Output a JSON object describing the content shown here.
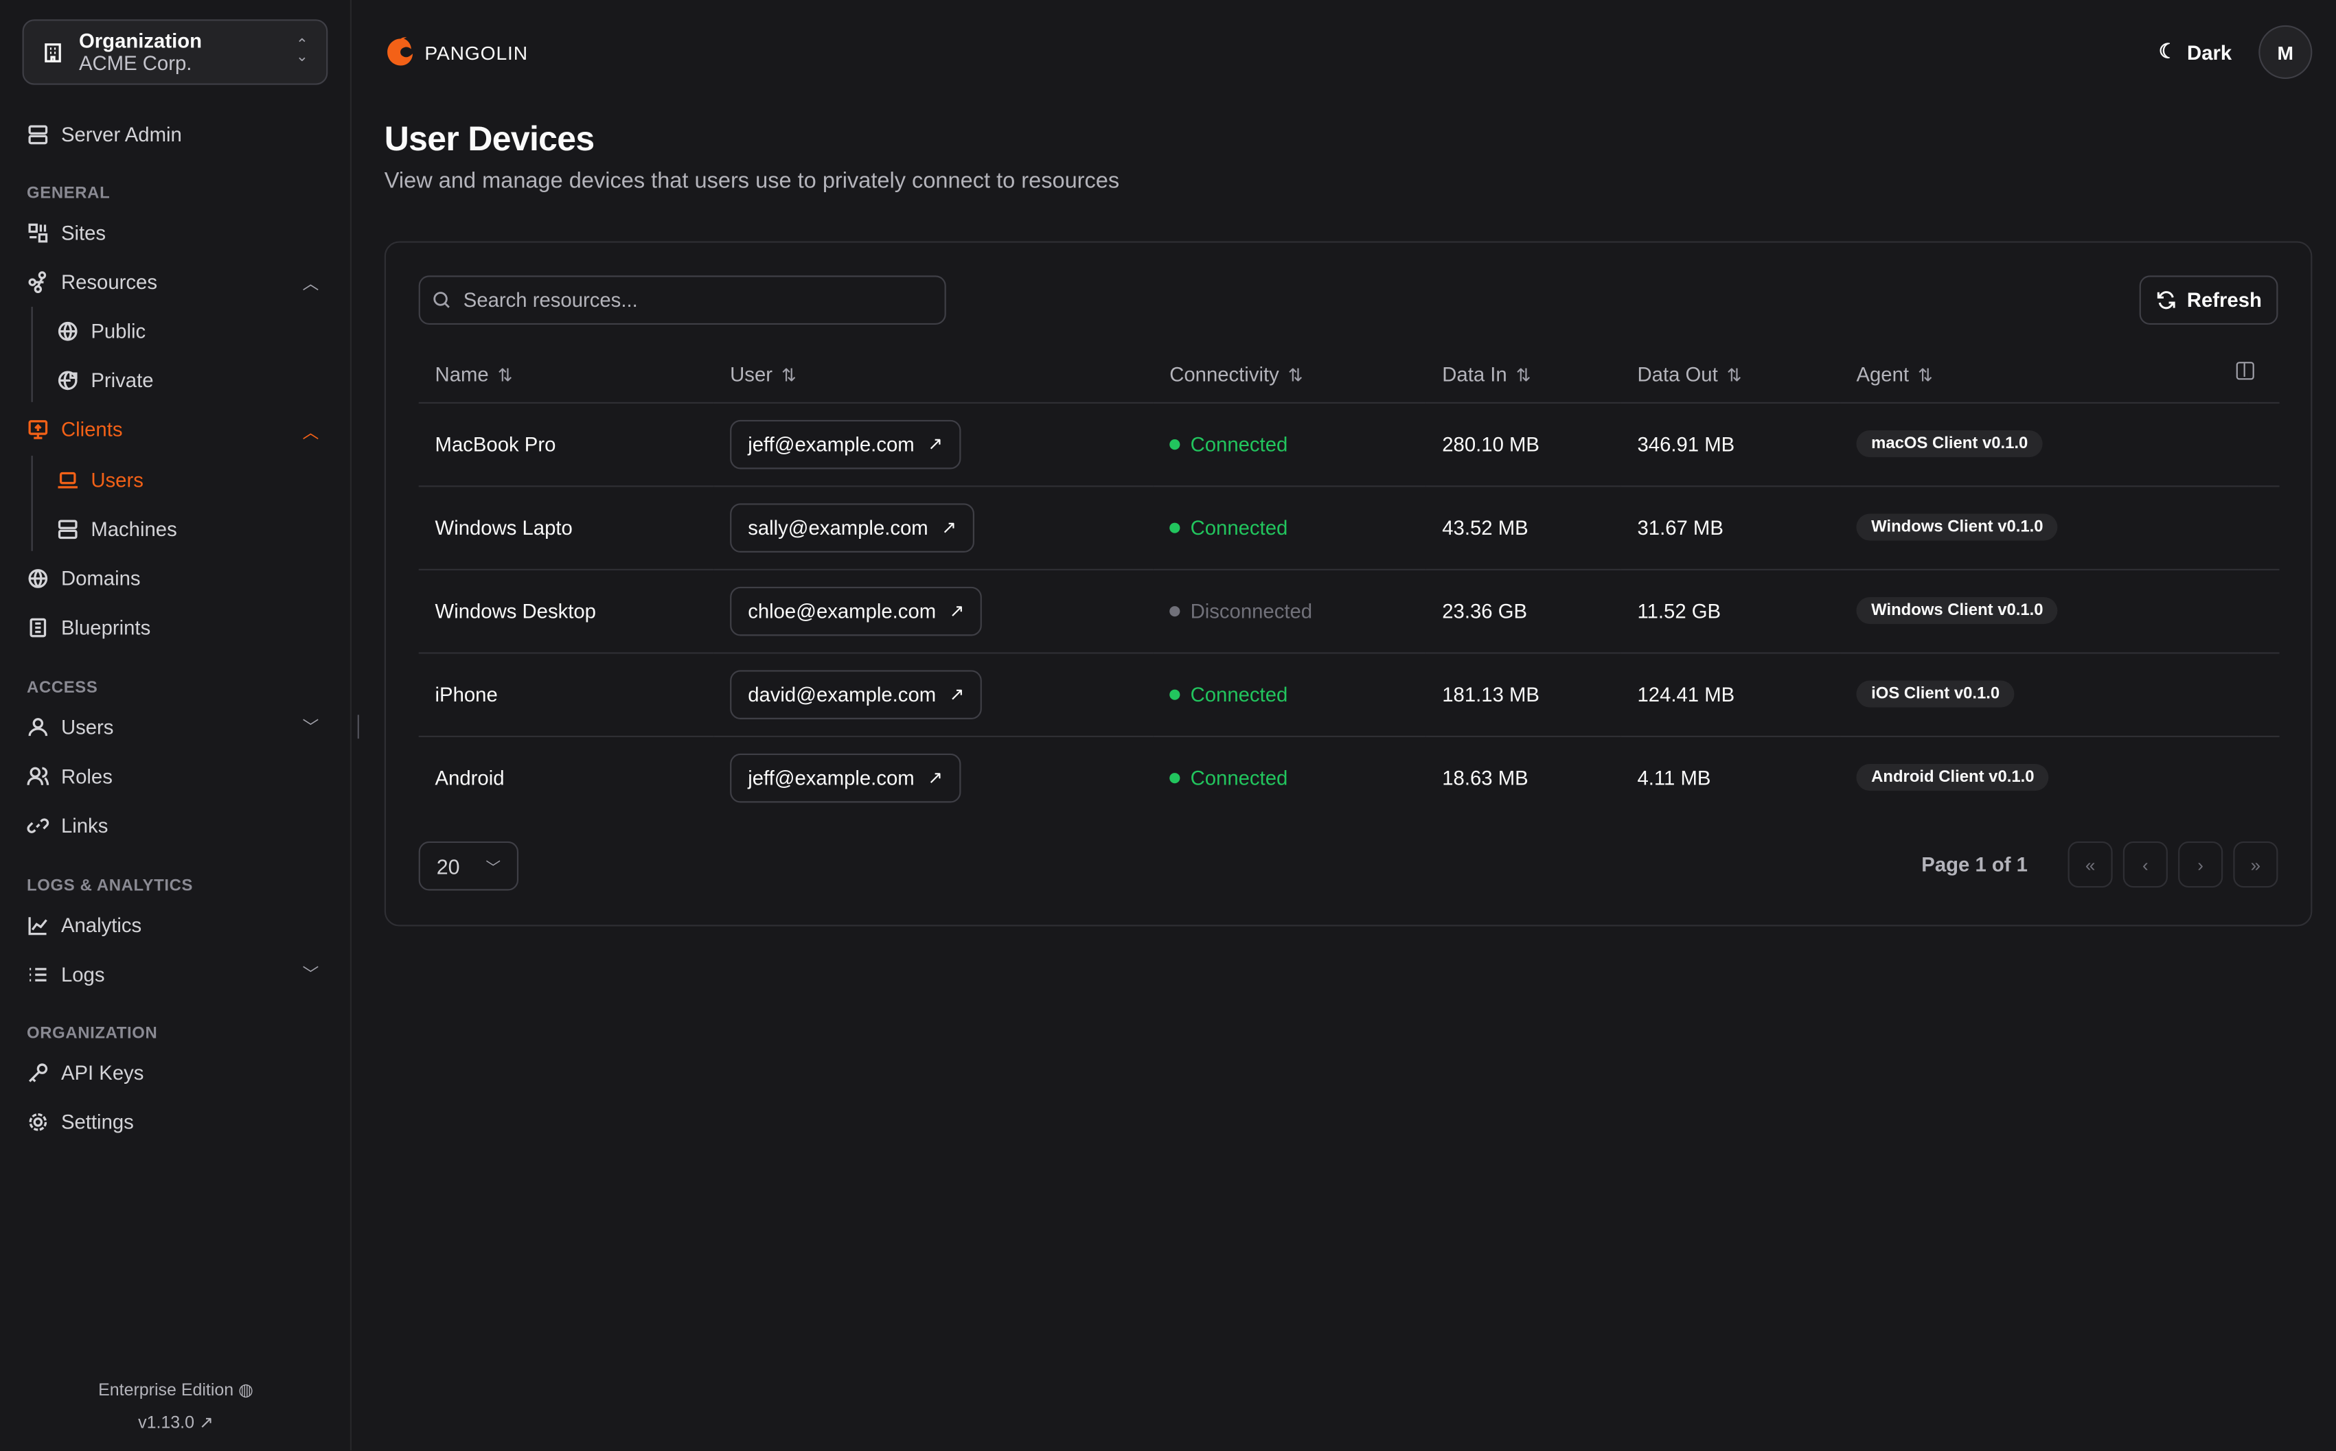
{
  "colors": {
    "accent": "#f36117",
    "connected": "#22c55e",
    "disconnected": "#71717a",
    "background": "#18181b"
  },
  "org": {
    "label": "Organization",
    "name": "ACME Corp."
  },
  "sidebar": {
    "server_admin": "Server Admin",
    "sections": {
      "general": "GENERAL",
      "access": "ACCESS",
      "logs": "LOGS & ANALYTICS",
      "organization": "ORGANIZATION"
    },
    "items": {
      "sites": "Sites",
      "resources": "Resources",
      "public": "Public",
      "private": "Private",
      "clients": "Clients",
      "users": "Users",
      "machines": "Machines",
      "domains": "Domains",
      "blueprints": "Blueprints",
      "access_users": "Users",
      "roles": "Roles",
      "links": "Links",
      "analytics": "Analytics",
      "logs": "Logs",
      "api_keys": "API Keys",
      "settings": "Settings"
    },
    "edition": "Enterprise Edition",
    "version": "v1.13.0"
  },
  "header": {
    "brand": "PANGOLIN",
    "theme": "Dark",
    "avatar": "M"
  },
  "page": {
    "title": "User Devices",
    "subtitle": "View and manage devices that users use to privately connect to resources"
  },
  "toolbar": {
    "search_placeholder": "Search resources...",
    "refresh": "Refresh"
  },
  "table": {
    "columns": [
      "Name",
      "User",
      "Connectivity",
      "Data In",
      "Data Out",
      "Agent"
    ],
    "rows": [
      {
        "name": "MacBook Pro",
        "user": "jeff@example.com",
        "status": "Connected",
        "connected": true,
        "data_in": "280.10 MB",
        "data_out": "346.91 MB",
        "agent": "macOS Client v0.1.0"
      },
      {
        "name": "Windows Lapto",
        "user": "sally@example.com",
        "status": "Connected",
        "connected": true,
        "data_in": "43.52 MB",
        "data_out": "31.67 MB",
        "agent": "Windows Client v0.1.0"
      },
      {
        "name": "Windows Desktop",
        "user": "chloe@example.com",
        "status": "Disconnected",
        "connected": false,
        "data_in": "23.36 GB",
        "data_out": "11.52 GB",
        "agent": "Windows Client v0.1.0"
      },
      {
        "name": "iPhone",
        "user": "david@example.com",
        "status": "Connected",
        "connected": true,
        "data_in": "181.13 MB",
        "data_out": "124.41 MB",
        "agent": "iOS Client v0.1.0"
      },
      {
        "name": "Android",
        "user": "jeff@example.com",
        "status": "Connected",
        "connected": true,
        "data_in": "18.63 MB",
        "data_out": "4.11 MB",
        "agent": "Android Client v0.1.0"
      }
    ]
  },
  "pagination": {
    "page_size": "20",
    "page_info": "Page 1 of 1"
  }
}
